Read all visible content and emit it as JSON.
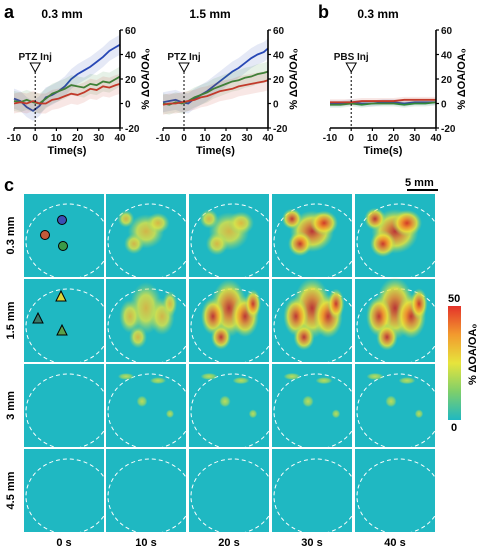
{
  "panel_labels": {
    "a": "a",
    "b": "b",
    "c": "c"
  },
  "chart_data": [
    {
      "type": "line",
      "panel": "a",
      "title": "0.3 mm",
      "annotation": "PTZ Inj",
      "xlabel": "Time(s)",
      "ylabel": "% ΔOA/OA₀",
      "xlim": [
        -10,
        40
      ],
      "ylim": [
        -20,
        60
      ],
      "xticks": [
        "-10",
        "0",
        "10",
        "20",
        "30",
        "40"
      ],
      "yticks": [
        "-20",
        "0",
        "20",
        "40",
        "60"
      ],
      "colors": [
        "#2747b5",
        "#2e8a3a",
        "#c23a2a"
      ],
      "x": [
        -10,
        -7,
        -4,
        -1,
        2,
        5,
        8,
        11,
        14,
        17,
        20,
        23,
        26,
        29,
        32,
        35,
        38,
        40
      ],
      "series": [
        {
          "values": [
            4,
            2,
            -3,
            -6,
            -2,
            5,
            7,
            10,
            14,
            20,
            24,
            27,
            30,
            34,
            38,
            43,
            46,
            48
          ]
        },
        {
          "values": [
            2,
            1,
            3,
            1,
            0,
            4,
            8,
            10,
            12,
            15,
            14,
            13,
            16,
            15,
            18,
            17,
            20,
            22
          ]
        },
        {
          "values": [
            0,
            1,
            0,
            2,
            0,
            0,
            3,
            4,
            6,
            8,
            7,
            9,
            12,
            11,
            14,
            13,
            15,
            16
          ]
        }
      ]
    },
    {
      "type": "line",
      "panel": "a",
      "title": "1.5 mm",
      "annotation": "PTZ Inj",
      "xlabel": "Time(s)",
      "ylabel": "% ΔOA/OA₀",
      "xlim": [
        -10,
        40
      ],
      "ylim": [
        -20,
        60
      ],
      "xticks": [
        "-10",
        "0",
        "10",
        "20",
        "30",
        "40"
      ],
      "yticks": [
        "-20",
        "0",
        "20",
        "40",
        "60"
      ],
      "colors": [
        "#2747b5",
        "#2e8a3a",
        "#c23a2a"
      ],
      "x": [
        -10,
        -7,
        -4,
        -1,
        2,
        5,
        8,
        11,
        14,
        17,
        20,
        23,
        26,
        29,
        32,
        35,
        38,
        40
      ],
      "series": [
        {
          "values": [
            1,
            2,
            3,
            1,
            0,
            4,
            7,
            10,
            14,
            18,
            22,
            26,
            29,
            33,
            37,
            40,
            42,
            45
          ]
        },
        {
          "values": [
            0,
            -1,
            1,
            0,
            2,
            5,
            7,
            9,
            12,
            14,
            16,
            18,
            19,
            21,
            22,
            24,
            25,
            26
          ]
        },
        {
          "values": [
            -1,
            0,
            0,
            1,
            2,
            3,
            5,
            6,
            8,
            10,
            11,
            12,
            14,
            15,
            16,
            17,
            18,
            19
          ]
        }
      ]
    },
    {
      "type": "line",
      "panel": "b",
      "title": "0.3 mm",
      "annotation": "PBS Inj",
      "xlabel": "Time(s)",
      "ylabel": "% ΔOA/OA₀",
      "xlim": [
        -10,
        40
      ],
      "ylim": [
        -20,
        60
      ],
      "xticks": [
        "-10",
        "0",
        "10",
        "20",
        "30",
        "40"
      ],
      "yticks": [
        "-20",
        "0",
        "20",
        "40",
        "60"
      ],
      "colors": [
        "#2747b5",
        "#2e8a3a",
        "#c23a2a"
      ],
      "x": [
        -10,
        -5,
        0,
        5,
        10,
        15,
        20,
        25,
        30,
        35,
        40
      ],
      "series": [
        {
          "values": [
            0,
            0,
            1,
            0,
            0,
            1,
            1,
            0,
            1,
            1,
            1
          ]
        },
        {
          "values": [
            -1,
            -1,
            0,
            -1,
            0,
            0,
            0,
            -1,
            0,
            0,
            1
          ]
        },
        {
          "values": [
            1,
            1,
            1,
            2,
            2,
            2,
            2,
            3,
            3,
            3,
            3
          ]
        }
      ]
    }
  ],
  "panel_c": {
    "scale_bar": "5 mm",
    "rows": [
      "0.3 mm",
      "1.5 mm",
      "3 mm",
      "4.5 mm"
    ],
    "columns": [
      "0 s",
      "10 s",
      "20 s",
      "30 s",
      "40 s"
    ],
    "colorbar": {
      "label": "% ΔOA/OA₀",
      "max": "50",
      "min": "0"
    },
    "background_color": "#1fb8c2",
    "intensity": [
      [
        0.0,
        0.45,
        0.65,
        0.8,
        0.95
      ],
      [
        0.0,
        0.6,
        0.8,
        0.9,
        0.95
      ],
      [
        0.0,
        0.15,
        0.2,
        0.2,
        0.2
      ],
      [
        0.0,
        0.0,
        0.0,
        0.0,
        0.0
      ]
    ]
  }
}
